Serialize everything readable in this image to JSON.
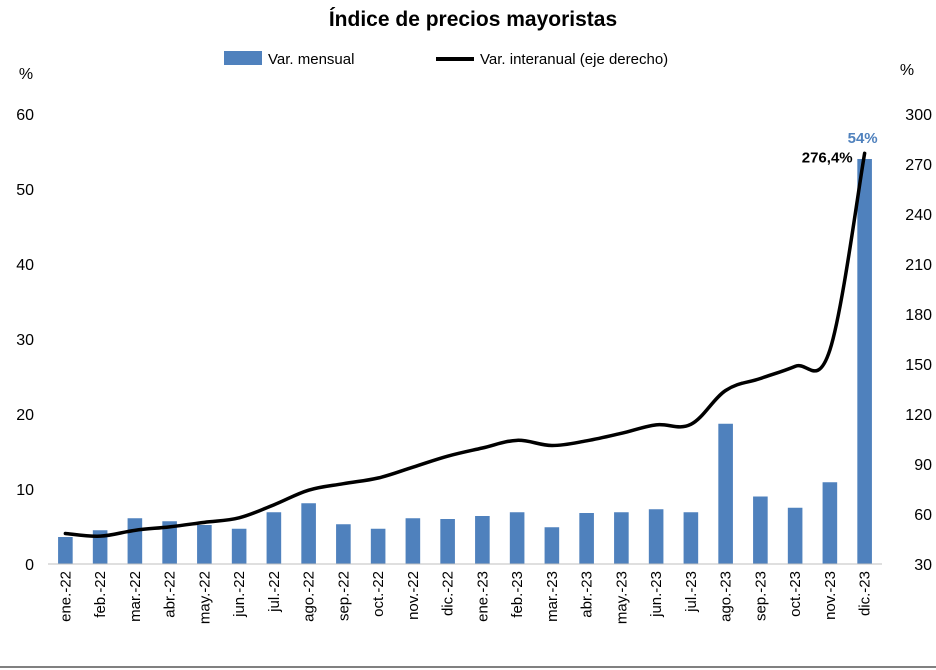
{
  "chart_data": {
    "type": "bar+line",
    "title": "Índice de precios mayoristas",
    "categories": [
      "ene.-22",
      "feb.-22",
      "mar.-22",
      "abr.-22",
      "may.-22",
      "jun.-22",
      "jul.-22",
      "ago.-22",
      "sep.-22",
      "oct.-22",
      "nov.-22",
      "dic.-22",
      "ene.-23",
      "feb.-23",
      "mar.-23",
      "abr.-23",
      "may.-23",
      "jun.-23",
      "jul.-23",
      "ago.-23",
      "sep.-23",
      "oct.-23",
      "nov.-23",
      "dic.-23"
    ],
    "series": [
      {
        "name": "Var. mensual",
        "kind": "bar",
        "axis": "left",
        "color": "#4F81BD",
        "values": [
          3.6,
          4.5,
          6.1,
          5.7,
          5.2,
          4.7,
          6.9,
          8.1,
          5.3,
          4.7,
          6.1,
          6.0,
          6.4,
          6.9,
          4.9,
          6.8,
          6.9,
          7.3,
          6.9,
          18.7,
          9.0,
          7.5,
          10.9,
          54.0
        ]
      },
      {
        "name": "Var. interanual (eje derecho)",
        "kind": "line",
        "axis": "right",
        "color": "#000000",
        "values": [
          48.3,
          46.7,
          50.2,
          52.3,
          55.0,
          57.7,
          65.5,
          74.3,
          78.2,
          81.6,
          88.1,
          94.7,
          99.6,
          104.2,
          101.1,
          103.9,
          108.4,
          113.5,
          113.8,
          134.1,
          141.3,
          148.6,
          158.4,
          276.4
        ]
      }
    ],
    "y_left": {
      "unit": "%",
      "range": [
        0,
        60
      ],
      "ticks": [
        "0",
        "10",
        "20",
        "30",
        "40",
        "50",
        "60"
      ]
    },
    "y_right": {
      "unit": "%",
      "range": [
        30,
        300
      ],
      "ticks": [
        "30",
        "60",
        "90",
        "120",
        "150",
        "180",
        "210",
        "240",
        "270",
        "300"
      ]
    },
    "annotations": {
      "bar_last": "54%",
      "line_last": "276,4%"
    },
    "legend": "top",
    "grid": false
  }
}
